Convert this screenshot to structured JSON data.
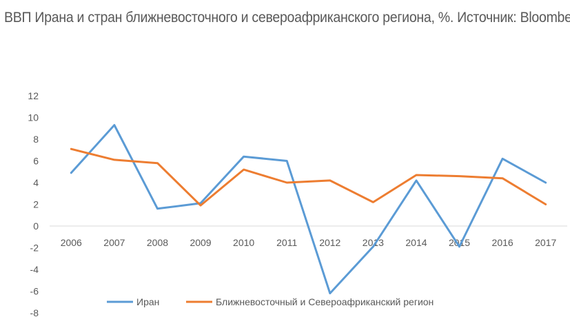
{
  "chart_data": {
    "type": "line",
    "title": "ВВП Ирана и стран ближневосточного и североафриканского региона, %. Источник: Bloomberg",
    "xlabel": "",
    "ylabel": "",
    "categories": [
      "2006",
      "2007",
      "2008",
      "2009",
      "2010",
      "2011",
      "2012",
      "2013",
      "2014",
      "2015",
      "2016",
      "2017"
    ],
    "ylim": [
      -8,
      12
    ],
    "yticks": [
      "12",
      "10",
      "8",
      "6",
      "4",
      "2",
      "0",
      "-2",
      "-4",
      "-6",
      "-8"
    ],
    "grid": false,
    "legend_position": "bottom",
    "series": [
      {
        "name": "Иран",
        "color": "#5B9BD5",
        "values": [
          4.9,
          9.3,
          1.6,
          2.1,
          6.4,
          6.0,
          -6.2,
          -1.9,
          4.2,
          -1.9,
          6.2,
          4.0
        ]
      },
      {
        "name": "Ближневосточный и Североафриканский регион",
        "color": "#ED7D31",
        "values": [
          7.1,
          6.1,
          5.8,
          1.9,
          5.2,
          4.0,
          4.2,
          2.2,
          4.7,
          4.6,
          4.4,
          2.0
        ]
      }
    ]
  }
}
